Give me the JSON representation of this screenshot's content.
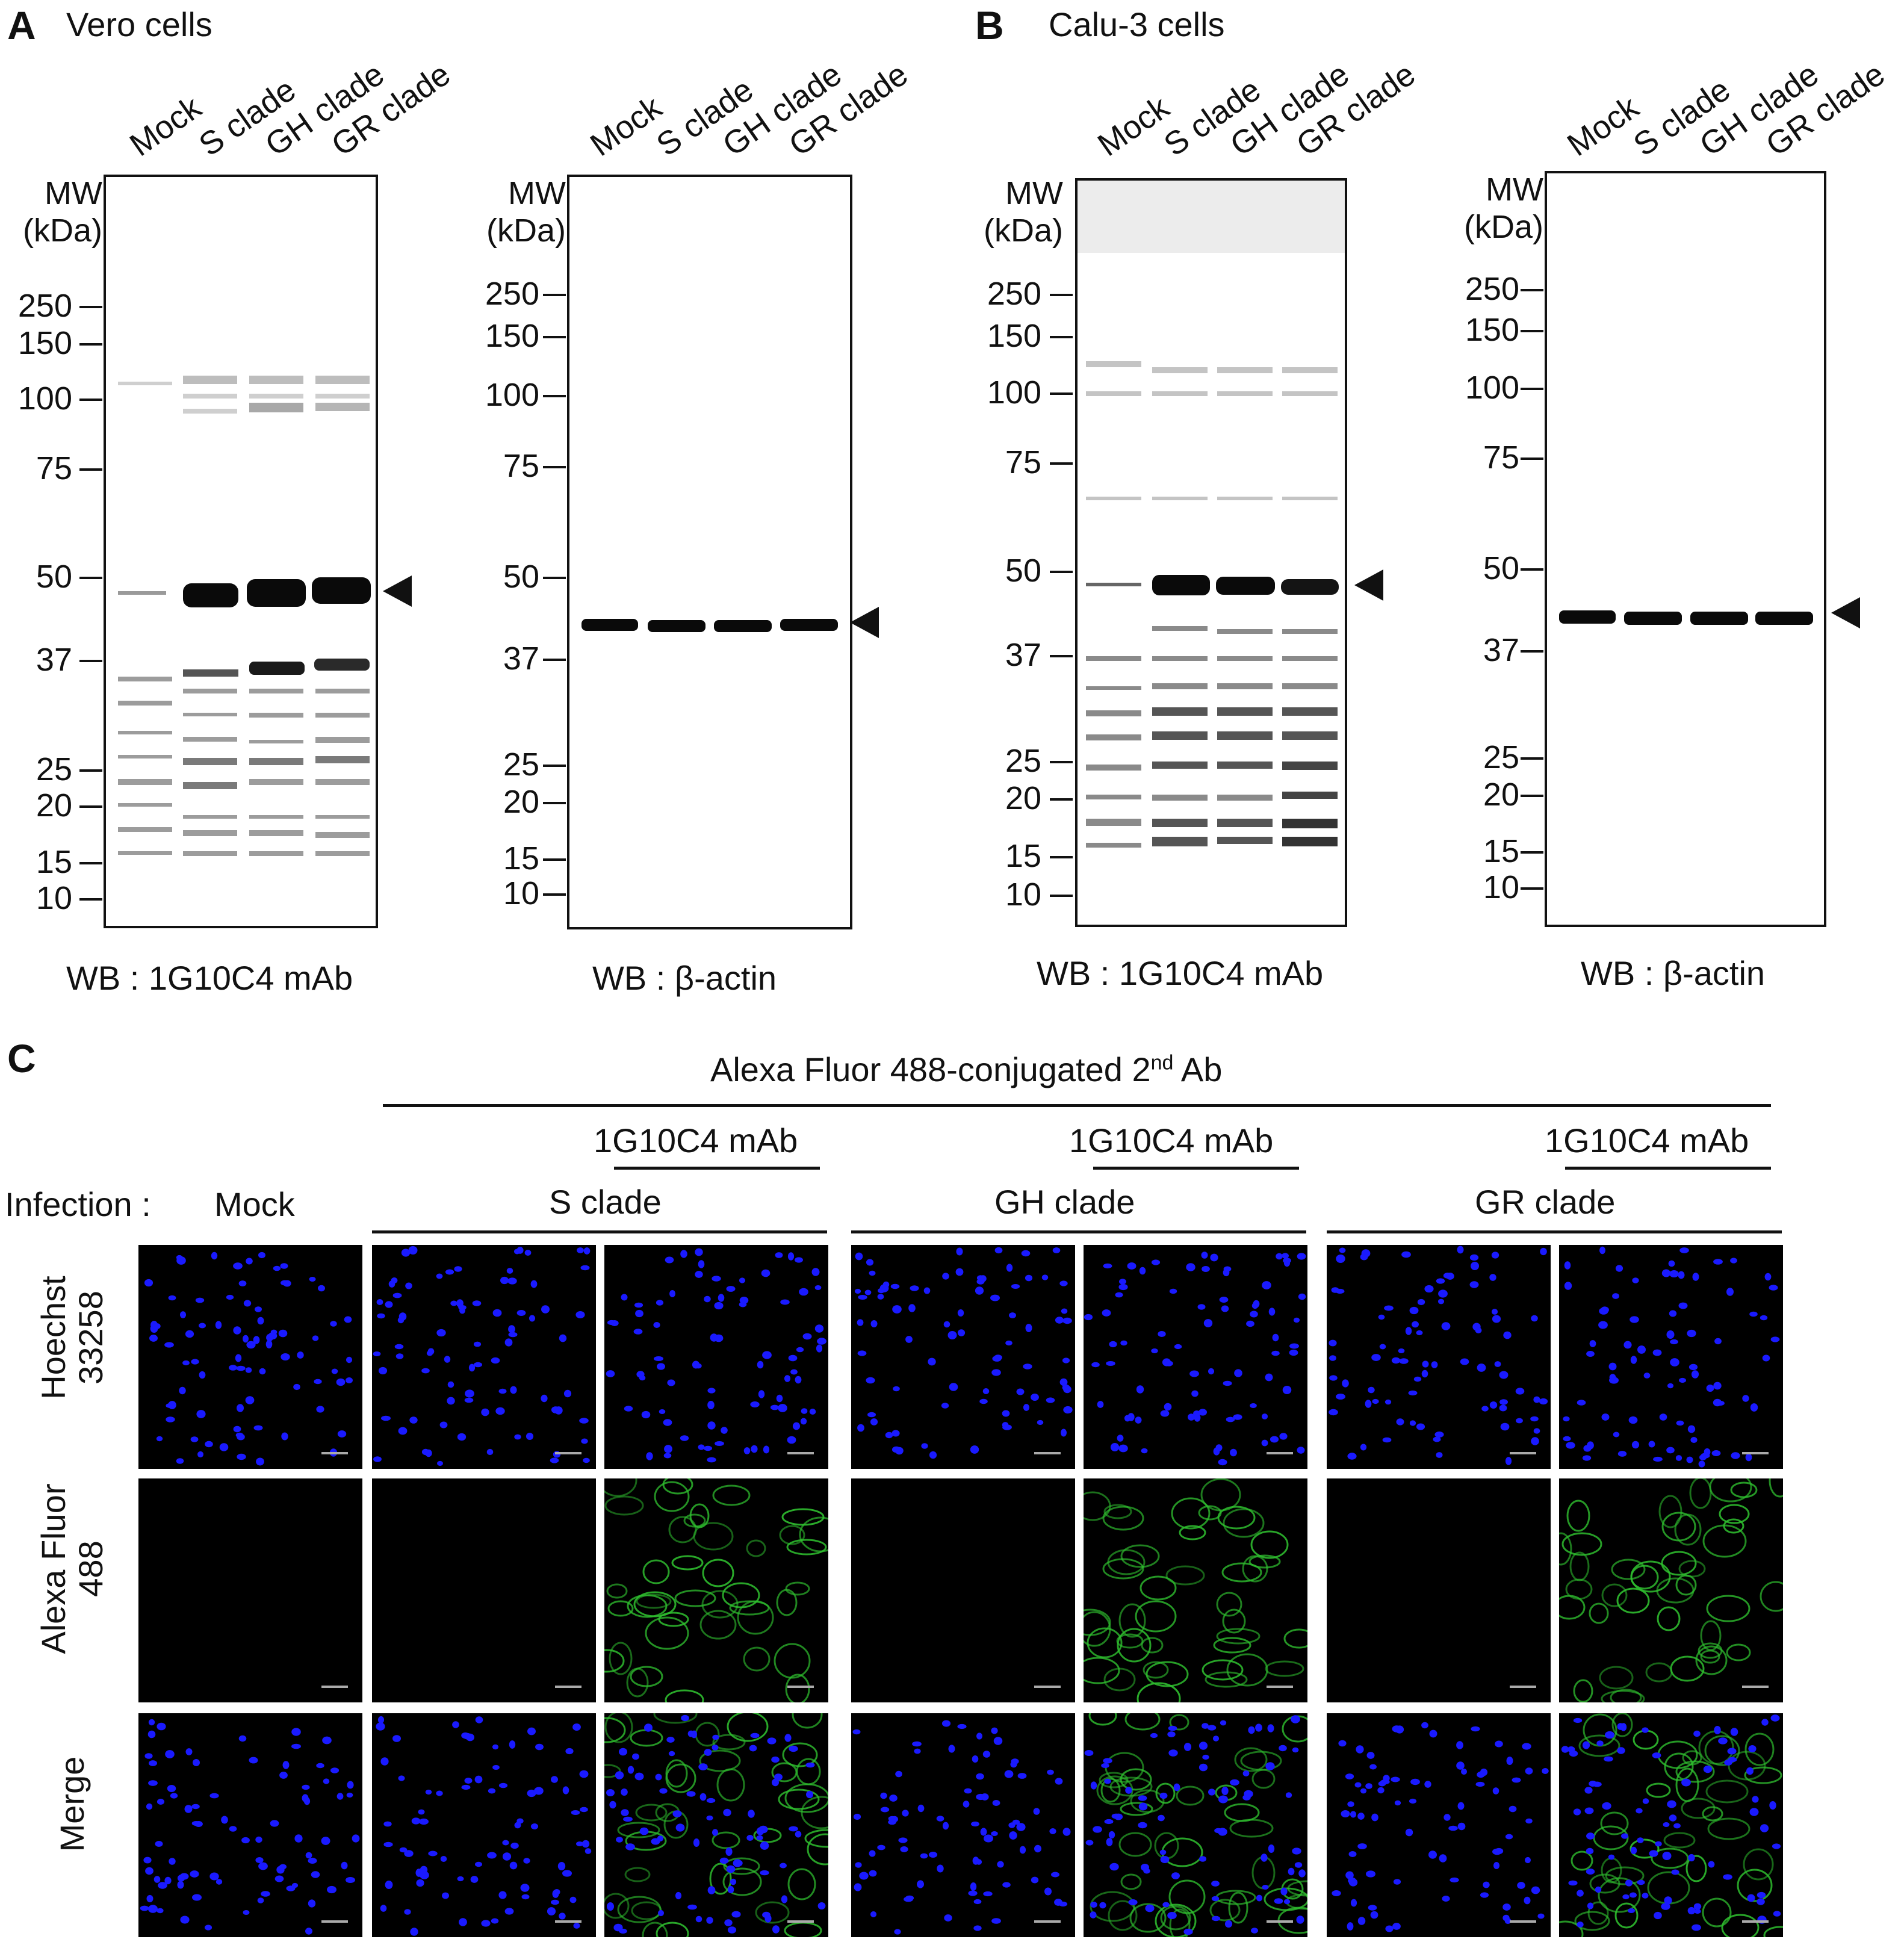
{
  "panel_a": {
    "letter": "A",
    "title": "Vero cells",
    "blots": [
      {
        "lanes": [
          "Mock",
          "S clade",
          "GH clade",
          "GR clade"
        ],
        "mw_title_1": "MW",
        "mw_title_2": "(kDa)",
        "markers": [
          "250",
          "150",
          "100",
          "75",
          "50",
          "37",
          "25",
          "20",
          "15",
          "10"
        ],
        "wb_label": "WB : 1G10C4 mAb"
      },
      {
        "lanes": [
          "Mock",
          "S clade",
          "GH clade",
          "GR clade"
        ],
        "mw_title_1": "MW",
        "mw_title_2": "(kDa)",
        "markers": [
          "250",
          "150",
          "100",
          "75",
          "50",
          "37",
          "25",
          "20",
          "15",
          "10"
        ],
        "wb_label": "WB : β-actin"
      }
    ]
  },
  "panel_b": {
    "letter": "B",
    "title": "Calu-3 cells",
    "blots": [
      {
        "lanes": [
          "Mock",
          "S clade",
          "GH clade",
          "GR clade"
        ],
        "mw_title_1": "MW",
        "mw_title_2": "(kDa)",
        "markers": [
          "250",
          "150",
          "100",
          "75",
          "50",
          "37",
          "25",
          "20",
          "15",
          "10"
        ],
        "wb_label": "WB : 1G10C4 mAb"
      },
      {
        "lanes": [
          "Mock",
          "S clade",
          "GH clade",
          "GR clade"
        ],
        "mw_title_1": "MW",
        "mw_title_2": "(kDa)",
        "markers": [
          "250",
          "150",
          "100",
          "75",
          "50",
          "37",
          "25",
          "20",
          "15",
          "10"
        ],
        "wb_label": "WB : β-actin"
      }
    ]
  },
  "panel_c": {
    "letter": "C",
    "secondary_ab_pre": "Alexa Fluor 488-conjugated 2",
    "secondary_ab_sup": "nd",
    "secondary_ab_post": " Ab",
    "primary_ab": "1G10C4 mAb",
    "infection_label": "Infection :",
    "groups": [
      "Mock",
      "S clade",
      "GH clade",
      "GR clade"
    ],
    "rows": [
      "Hoechst 33258",
      "Alexa Fluor 488",
      "Merge"
    ],
    "row_lines": [
      [
        "Hoechst",
        "33258"
      ],
      [
        "Alexa Fluor",
        "488"
      ],
      [
        "Merge"
      ]
    ]
  },
  "colors": {
    "nuclei": "#1a1aff",
    "alexa": "#2fbf2f",
    "blot_band": "#0a0a0a",
    "background": "#000000"
  }
}
